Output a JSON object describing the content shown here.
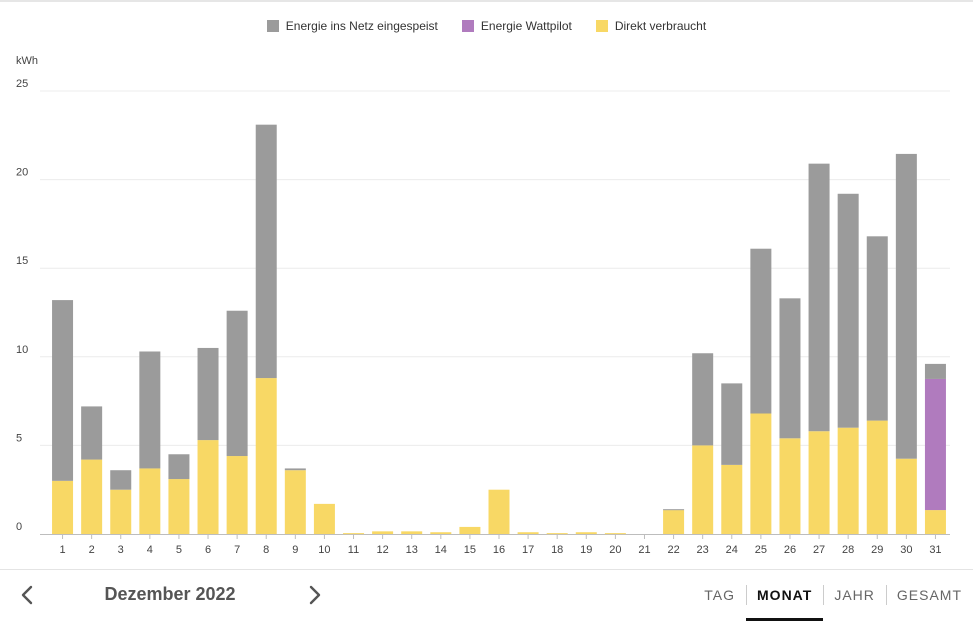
{
  "chart_data": {
    "type": "bar",
    "stacked": true,
    "unit": "kWh",
    "categories": [
      "1",
      "2",
      "3",
      "4",
      "5",
      "6",
      "7",
      "8",
      "9",
      "10",
      "11",
      "12",
      "13",
      "14",
      "15",
      "16",
      "17",
      "18",
      "19",
      "20",
      "21",
      "22",
      "23",
      "24",
      "25",
      "26",
      "27",
      "28",
      "29",
      "30",
      "31"
    ],
    "series": [
      {
        "name": "Direkt verbraucht",
        "color": "#f8d865",
        "values": [
          3.0,
          4.2,
          2.5,
          3.7,
          3.1,
          5.3,
          4.4,
          8.8,
          3.6,
          1.7,
          0.05,
          0.15,
          0.15,
          0.1,
          0.4,
          2.5,
          0.1,
          0.05,
          0.1,
          0.05,
          0.0,
          1.35,
          5.0,
          3.9,
          6.8,
          5.4,
          5.8,
          6.0,
          6.4,
          4.25,
          1.35
        ]
      },
      {
        "name": "Energie Wattpilot",
        "color": "#b07bbe",
        "values": [
          0,
          0,
          0,
          0,
          0,
          0,
          0,
          0,
          0,
          0,
          0,
          0,
          0,
          0,
          0,
          0,
          0,
          0,
          0,
          0,
          0,
          0,
          0,
          0,
          0,
          0,
          0,
          0,
          0,
          0,
          7.4
        ]
      },
      {
        "name": "Energie ins Netz eingespeist",
        "color": "#9b9b9b",
        "values": [
          10.2,
          3.0,
          1.1,
          6.6,
          1.4,
          5.2,
          8.2,
          14.3,
          0.1,
          0,
          0,
          0,
          0,
          0,
          0,
          0,
          0,
          0,
          0,
          0,
          0,
          0.05,
          5.2,
          4.6,
          9.3,
          7.9,
          15.1,
          13.2,
          10.4,
          17.2,
          0.85
        ]
      }
    ],
    "legend_order": [
      "Energie ins Netz eingespeist",
      "Energie Wattpilot",
      "Direkt verbraucht"
    ],
    "yticks": [
      0,
      5,
      10,
      15,
      20,
      25
    ],
    "ylim": [
      0,
      25
    ],
    "legend_position": "top-center",
    "grid": true
  },
  "footer": {
    "period_label": "Dezember 2022",
    "tabs": [
      {
        "label": "TAG",
        "active": false
      },
      {
        "label": "MONAT",
        "active": true
      },
      {
        "label": "JAHR",
        "active": false
      },
      {
        "label": "GESAMT",
        "active": false
      }
    ]
  }
}
